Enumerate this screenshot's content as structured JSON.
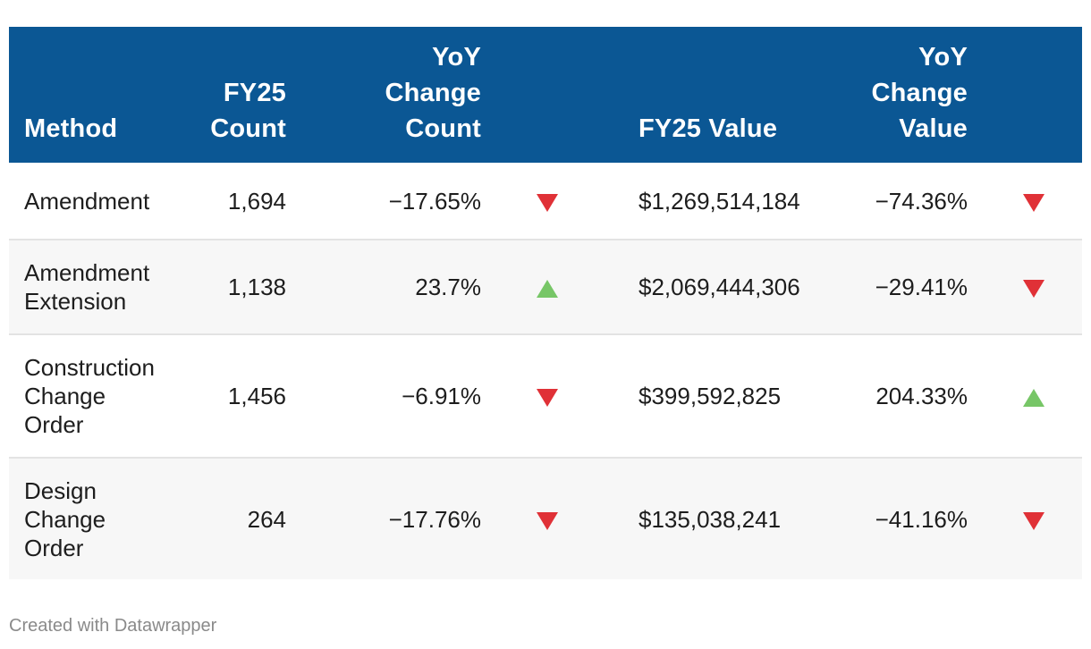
{
  "chart_data": {
    "type": "table",
    "columns": [
      "Method",
      "FY25 Count",
      "YoY Change Count",
      "",
      "FY25 Value",
      "YoY Change Value",
      ""
    ],
    "headers": {
      "method": [
        "Method"
      ],
      "count": [
        "FY25",
        "Count"
      ],
      "count_change": [
        "YoY",
        "Change",
        "Count"
      ],
      "value": [
        "FY25 Value"
      ],
      "value_change": [
        "YoY",
        "Change",
        "Value"
      ]
    },
    "rows": [
      {
        "method": [
          "Amendment"
        ],
        "count": "1,694",
        "count_change": "−17.65%",
        "count_trend": "down",
        "value": "$1,269,514,184",
        "value_change": "−74.36%",
        "value_trend": "down"
      },
      {
        "method": [
          "Amendment",
          "Extension"
        ],
        "count": "1,138",
        "count_change": "23.7%",
        "count_trend": "up",
        "value": "$2,069,444,306",
        "value_change": "−29.41%",
        "value_trend": "down"
      },
      {
        "method": [
          "Construction",
          "Change",
          "Order"
        ],
        "count": "1,456",
        "count_change": "−6.91%",
        "count_trend": "down",
        "value": "$399,592,825",
        "value_change": "204.33%",
        "value_trend": "up"
      },
      {
        "method": [
          "Design",
          "Change",
          "Order"
        ],
        "count": "264",
        "count_change": "−17.76%",
        "count_trend": "down",
        "value": "$135,038,241",
        "value_change": "−41.16%",
        "value_trend": "down"
      }
    ]
  },
  "colors": {
    "header_bg": "#0b5794",
    "down": "#e03137",
    "up": "#77c667"
  },
  "footer": {
    "credit": "Created with Datawrapper"
  }
}
